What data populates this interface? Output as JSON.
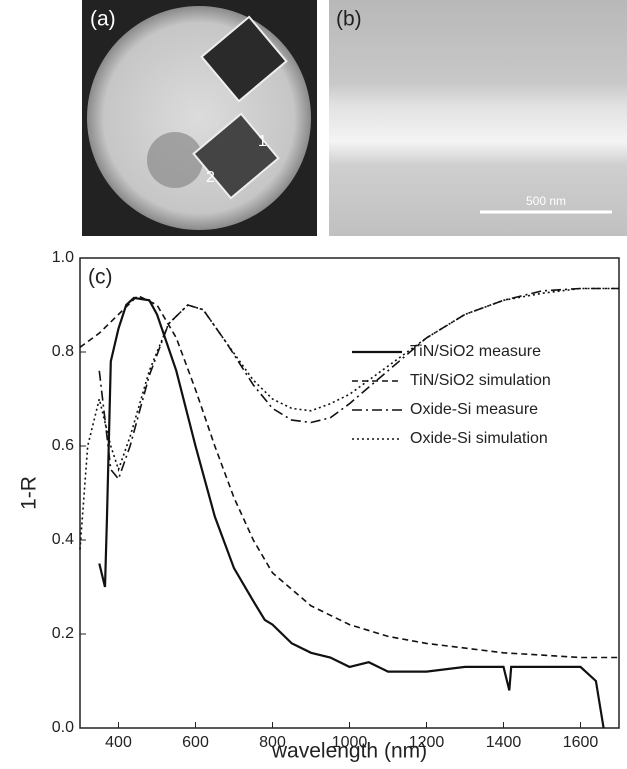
{
  "panels": {
    "a": "(a)",
    "b": "(b)",
    "sample_1": "1",
    "sample_2": "2",
    "scale_bar": "500 nm"
  },
  "chart_data": {
    "type": "line",
    "panel_label": "(c)",
    "x_label": "wavelength (nm)",
    "y_label": "1-R",
    "xlim": [
      300,
      1700
    ],
    "ylim": [
      0,
      1.0
    ],
    "xticks": [
      400,
      600,
      800,
      1000,
      1200,
      1400,
      1600
    ],
    "yticks": [
      {
        "value": 0,
        "label": "0.0"
      },
      0.2,
      0.4,
      0.6,
      0.8,
      {
        "value": 1,
        "label": "1.0"
      }
    ],
    "series": [
      {
        "name": "TiN/SiO2 measure",
        "color": "#111111",
        "style": "solid",
        "x": [
          350,
          365,
          370,
          380,
          400,
          420,
          440,
          480,
          500,
          550,
          600,
          650,
          700,
          750,
          780,
          800,
          850,
          900,
          950,
          1000,
          1050,
          1100,
          1200,
          1300,
          1400,
          1415,
          1420,
          1500,
          1600,
          1640,
          1660
        ],
        "values": [
          0.35,
          0.3,
          0.45,
          0.78,
          0.85,
          0.9,
          0.915,
          0.91,
          0.88,
          0.76,
          0.6,
          0.45,
          0.34,
          0.27,
          0.23,
          0.22,
          0.18,
          0.16,
          0.15,
          0.13,
          0.14,
          0.12,
          0.12,
          0.13,
          0.13,
          0.08,
          0.13,
          0.13,
          0.13,
          0.1,
          0.0
        ]
      },
      {
        "name": "TiN/SiO2 simulation",
        "color": "#111111",
        "style": "dashed",
        "x": [
          300,
          350,
          400,
          450,
          500,
          550,
          600,
          650,
          700,
          750,
          800,
          900,
          1000,
          1100,
          1200,
          1300,
          1400,
          1500,
          1600,
          1700
        ],
        "values": [
          0.81,
          0.84,
          0.88,
          0.92,
          0.9,
          0.83,
          0.72,
          0.6,
          0.49,
          0.4,
          0.33,
          0.26,
          0.22,
          0.195,
          0.18,
          0.17,
          0.16,
          0.155,
          0.15,
          0.15
        ]
      },
      {
        "name": "Oxide-Si measure",
        "color": "#111111",
        "style": "dashdot",
        "x": [
          350,
          380,
          400,
          430,
          480,
          530,
          580,
          620,
          680,
          750,
          800,
          850,
          900,
          950,
          1000,
          1100,
          1200,
          1300,
          1400,
          1500,
          1600,
          1700
        ],
        "values": [
          0.76,
          0.55,
          0.53,
          0.6,
          0.75,
          0.86,
          0.9,
          0.89,
          0.82,
          0.73,
          0.68,
          0.655,
          0.65,
          0.66,
          0.69,
          0.76,
          0.83,
          0.88,
          0.91,
          0.93,
          0.935,
          0.935
        ]
      },
      {
        "name": "Oxide-Si simulation",
        "color": "#111111",
        "style": "dotted",
        "x": [
          300,
          320,
          350,
          380,
          400,
          430,
          480,
          530,
          580,
          620,
          680,
          750,
          800,
          850,
          900,
          950,
          1000,
          1100,
          1200,
          1300,
          1400,
          1500,
          1600,
          1700
        ],
        "values": [
          0.38,
          0.6,
          0.7,
          0.6,
          0.55,
          0.62,
          0.76,
          0.86,
          0.9,
          0.89,
          0.82,
          0.74,
          0.7,
          0.68,
          0.675,
          0.69,
          0.71,
          0.77,
          0.83,
          0.88,
          0.91,
          0.925,
          0.935,
          0.935
        ]
      }
    ]
  }
}
